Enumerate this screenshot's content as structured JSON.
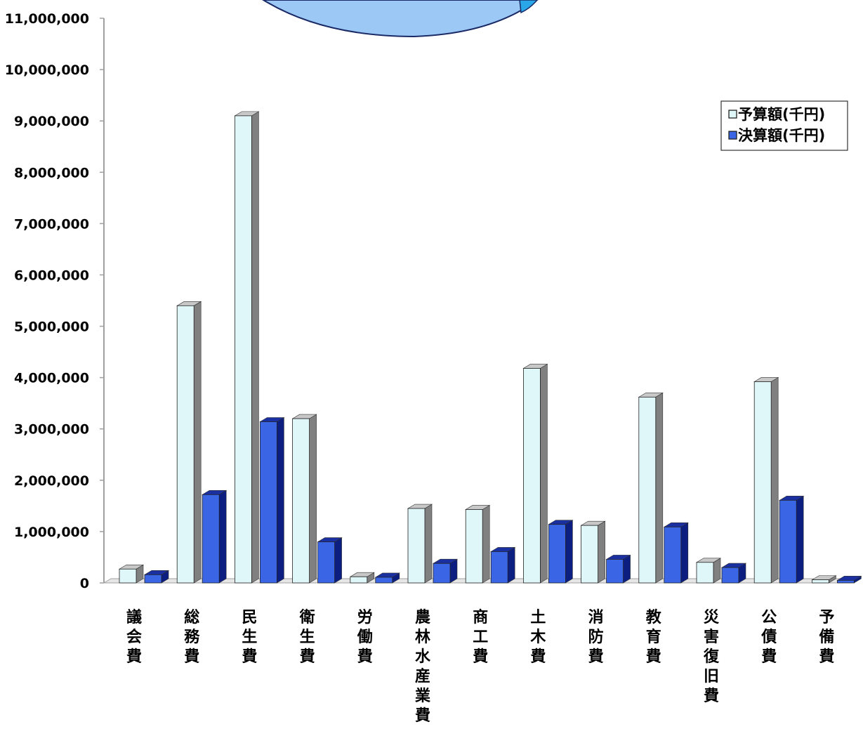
{
  "chart_data": {
    "type": "bar",
    "title": "",
    "xlabel": "",
    "ylabel": "",
    "ylim": [
      0,
      11000000
    ],
    "y_ticks": [
      "0",
      "1,000,000",
      "2,000,000",
      "3,000,000",
      "4,000,000",
      "5,000,000",
      "6,000,000",
      "7,000,000",
      "8,000,000",
      "9,000,000",
      "10,000,000",
      "11,000,000"
    ],
    "categories": [
      "議会費",
      "総務費",
      "民生費",
      "衛生費",
      "労働費",
      "農林水産業費",
      "商工費",
      "土木費",
      "消防費",
      "教育費",
      "災害復旧費",
      "公債費",
      "予備費"
    ],
    "series": [
      {
        "name": "予算額(千円)",
        "color": "#e0f7fa",
        "side": "#808080",
        "values": [
          270000,
          5400000,
          9100000,
          3200000,
          120000,
          1450000,
          1430000,
          4180000,
          1120000,
          3620000,
          400000,
          3920000,
          60000
        ]
      },
      {
        "name": "決算額(千円)",
        "color": "#3a66e6",
        "side": "#0c1f80",
        "values": [
          160000,
          1720000,
          3140000,
          800000,
          110000,
          380000,
          610000,
          1140000,
          460000,
          1090000,
          300000,
          1610000,
          50000
        ]
      }
    ],
    "legend_position": "top-right",
    "grid": false
  }
}
